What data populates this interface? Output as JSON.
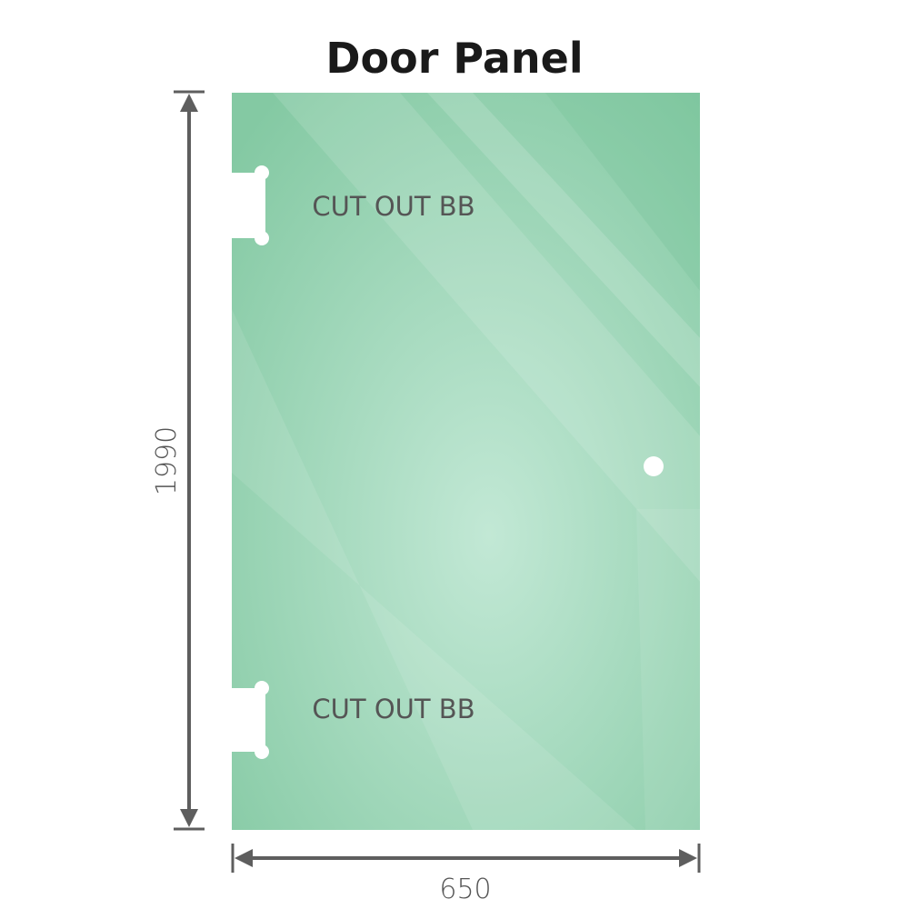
{
  "title": "Door Panel",
  "cutout_top_label": "CUT OUT BB",
  "cutout_bottom_label": "CUT OUT BB",
  "height_label": "1990",
  "width_label": "650",
  "colors": {
    "glass_edge": "#84c9a3",
    "glass_center": "#c2e8d5",
    "dimension_line": "#5e5e5e",
    "text": "#555555"
  }
}
